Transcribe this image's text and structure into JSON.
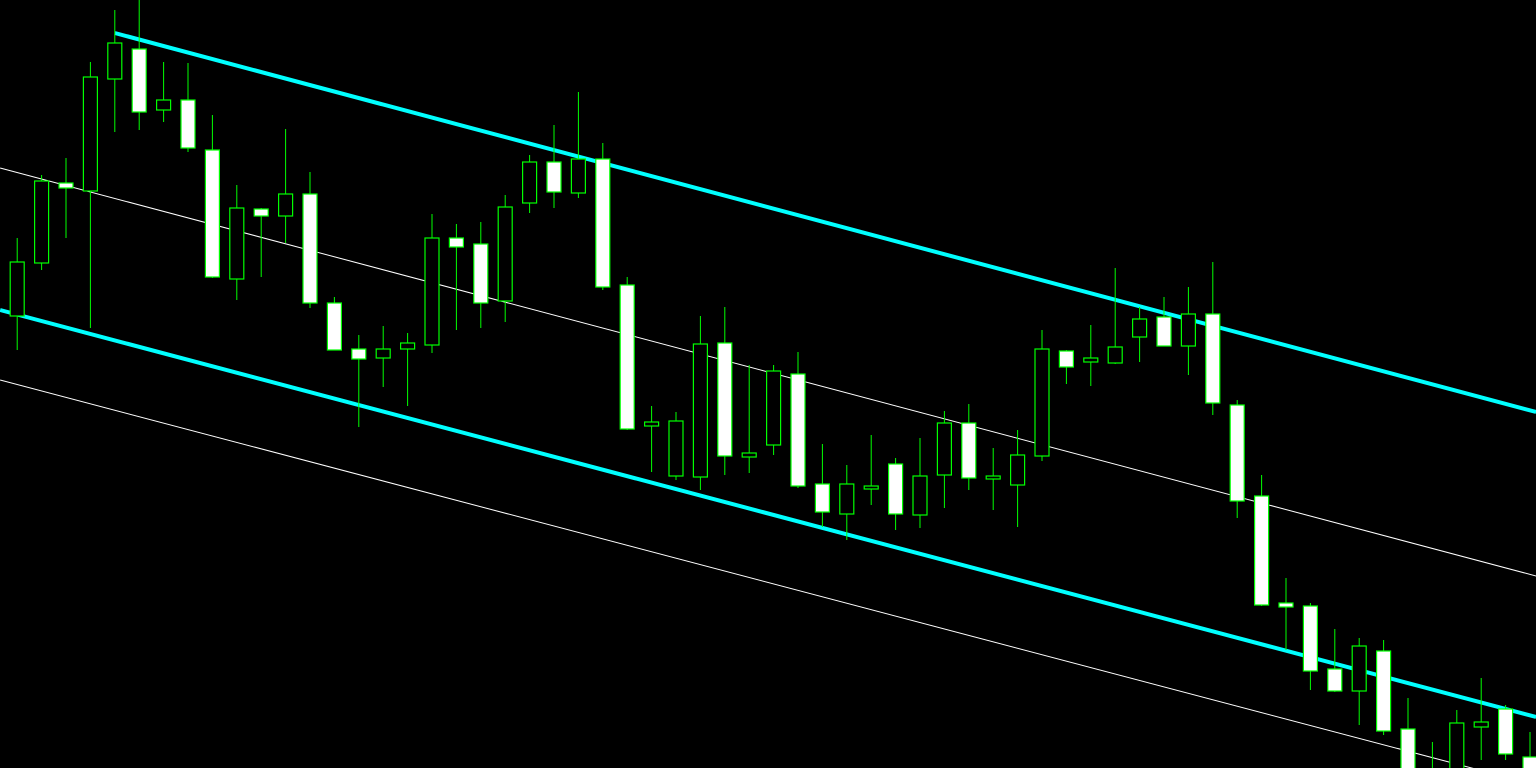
{
  "chart_data": {
    "type": "candlestick",
    "ylim": [
      0,
      768
    ],
    "up_color": "#000000",
    "down_color": "#ffffff",
    "wick_color": "#00ff00",
    "open": [
      453,
      506,
      584,
      578,
      690,
      718,
      659,
      667,
      617,
      490,
      558,
      553,
      573,
      464,
      418,
      411,
      420,
      424,
      529,
      523,
      468,
      566,
      605,
      576,
      608,
      482,
      343,
      293,
      292,
      424,
      312,
      324,
      393,
      283,
      255,
      280,
      303,
      254,
      294,
      344,
      290,
      284,
      313,
      416,
      407,
      406,
      432,
      450,
      423,
      453,
      362,
      271,
      164,
      161,
      98,
      78,
      116,
      38,
      -24,
      -22,
      42,
      58,
      10
    ],
    "high": [
      530,
      593,
      610,
      706,
      758,
      768,
      706,
      705,
      653,
      583,
      560,
      639,
      596,
      471,
      433,
      442,
      435,
      554,
      544,
      546,
      573,
      613,
      643,
      676,
      625,
      491,
      362,
      356,
      452,
      461,
      403,
      403,
      416,
      324,
      303,
      333,
      310,
      330,
      357,
      364,
      320,
      338,
      438,
      418,
      443,
      500,
      461,
      471,
      481,
      506,
      368,
      293,
      190,
      165,
      139,
      130,
      128,
      70,
      26,
      58,
      90,
      63,
      36
    ],
    "low": [
      418,
      498,
      530,
      440,
      636,
      638,
      646,
      616,
      490,
      468,
      491,
      525,
      460,
      418,
      341,
      381,
      362,
      415,
      438,
      440,
      446,
      555,
      560,
      570,
      478,
      338,
      296,
      288,
      278,
      293,
      295,
      313,
      280,
      241,
      228,
      263,
      238,
      240,
      260,
      278,
      258,
      241,
      307,
      384,
      382,
      404,
      406,
      422,
      393,
      353,
      250,
      162,
      118,
      78,
      76,
      43,
      33,
      -22,
      -32,
      -32,
      8,
      8,
      -32
    ],
    "close": [
      505,
      586,
      581,
      690,
      724,
      657,
      667,
      621,
      492,
      559,
      553,
      573,
      466,
      419,
      410,
      418,
      424,
      529,
      522,
      466,
      560,
      605,
      577,
      608,
      482,
      340,
      345,
      346,
      423,
      313,
      314,
      396,
      283,
      257,
      283,
      281,
      255,
      291,
      344,
      291,
      291,
      312,
      418,
      402,
      409,
      420,
      448,
      423,
      453,
      366,
      268,
      164,
      162,
      98,
      78,
      121,
      38,
      -12,
      -4,
      44,
      45,
      15,
      -22
    ],
    "lines": [
      {
        "color": "#00ffff",
        "width": 4,
        "x": [
          4,
          62.25
        ],
        "values": [
          735,
          356
        ]
      },
      {
        "color": "#00ffff",
        "width": 4,
        "x": [
          -0.7,
          62.25
        ],
        "values": [
          458,
          51
        ]
      },
      {
        "color": "#ffffff",
        "width": 1,
        "x": [
          -0.7,
          62.25
        ],
        "values": [
          600,
          192
        ]
      },
      {
        "color": "#ffffff",
        "width": 1,
        "x": [
          -0.7,
          62.25
        ],
        "values": [
          388,
          -17
        ]
      }
    ]
  }
}
